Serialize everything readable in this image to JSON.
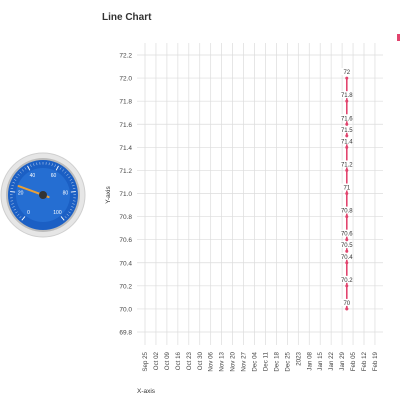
{
  "chart_title": "Line Chart",
  "colors": {
    "series": "#e2446e",
    "grid": "#dcdcdc",
    "gauge_face": "#1b5fc4",
    "gauge_needle": "#e8a038"
  },
  "gauge": {
    "labels": [
      "0",
      "20",
      "40",
      "60",
      "80",
      "100"
    ],
    "value": 25
  },
  "chart_data": {
    "type": "line",
    "title": "Line Chart",
    "xlabel": "X-axis",
    "ylabel": "Y-axis",
    "ylim": [
      69.8,
      72.2
    ],
    "yticks": [
      "69.8",
      "70.0",
      "70.2",
      "70.4",
      "70.6",
      "70.8",
      "71.0",
      "71.2",
      "71.4",
      "71.6",
      "71.8",
      "72.0",
      "72.2"
    ],
    "xticks": [
      "Sep 25",
      "Oct 02",
      "Oct 09",
      "Oct 16",
      "Oct 23",
      "Oct 30",
      "Nov 06",
      "Nov 13",
      "Nov 20",
      "Nov 27",
      "Dec 04",
      "Dec 11",
      "Dec 18",
      "Dec 25",
      "2023",
      "Jan 08",
      "Jan 15",
      "Jan 22",
      "Jan 29",
      "Feb 05",
      "Feb 12",
      "Feb 19"
    ],
    "grid": true,
    "series": [
      {
        "x": [
          "Feb 01",
          "Feb 01",
          "Feb 01",
          "Feb 01",
          "Feb 01",
          "Feb 01",
          "Feb 01",
          "Feb 01",
          "Feb 01",
          "Feb 01",
          "Feb 01",
          "Feb 01",
          "Feb 01",
          "Feb 01"
        ],
        "values": [
          72,
          71.8,
          71.6,
          71.5,
          71.4,
          71.2,
          71,
          70.8,
          70.6,
          70.5,
          70.4,
          70.2,
          70,
          70
        ],
        "point_labels": [
          "72",
          "71.8",
          "71.6",
          "71.5",
          "71.4",
          "71.2",
          "71",
          "70.8",
          "70.6",
          "70.5",
          "70.4",
          "70.2",
          "70",
          "70"
        ]
      }
    ]
  }
}
